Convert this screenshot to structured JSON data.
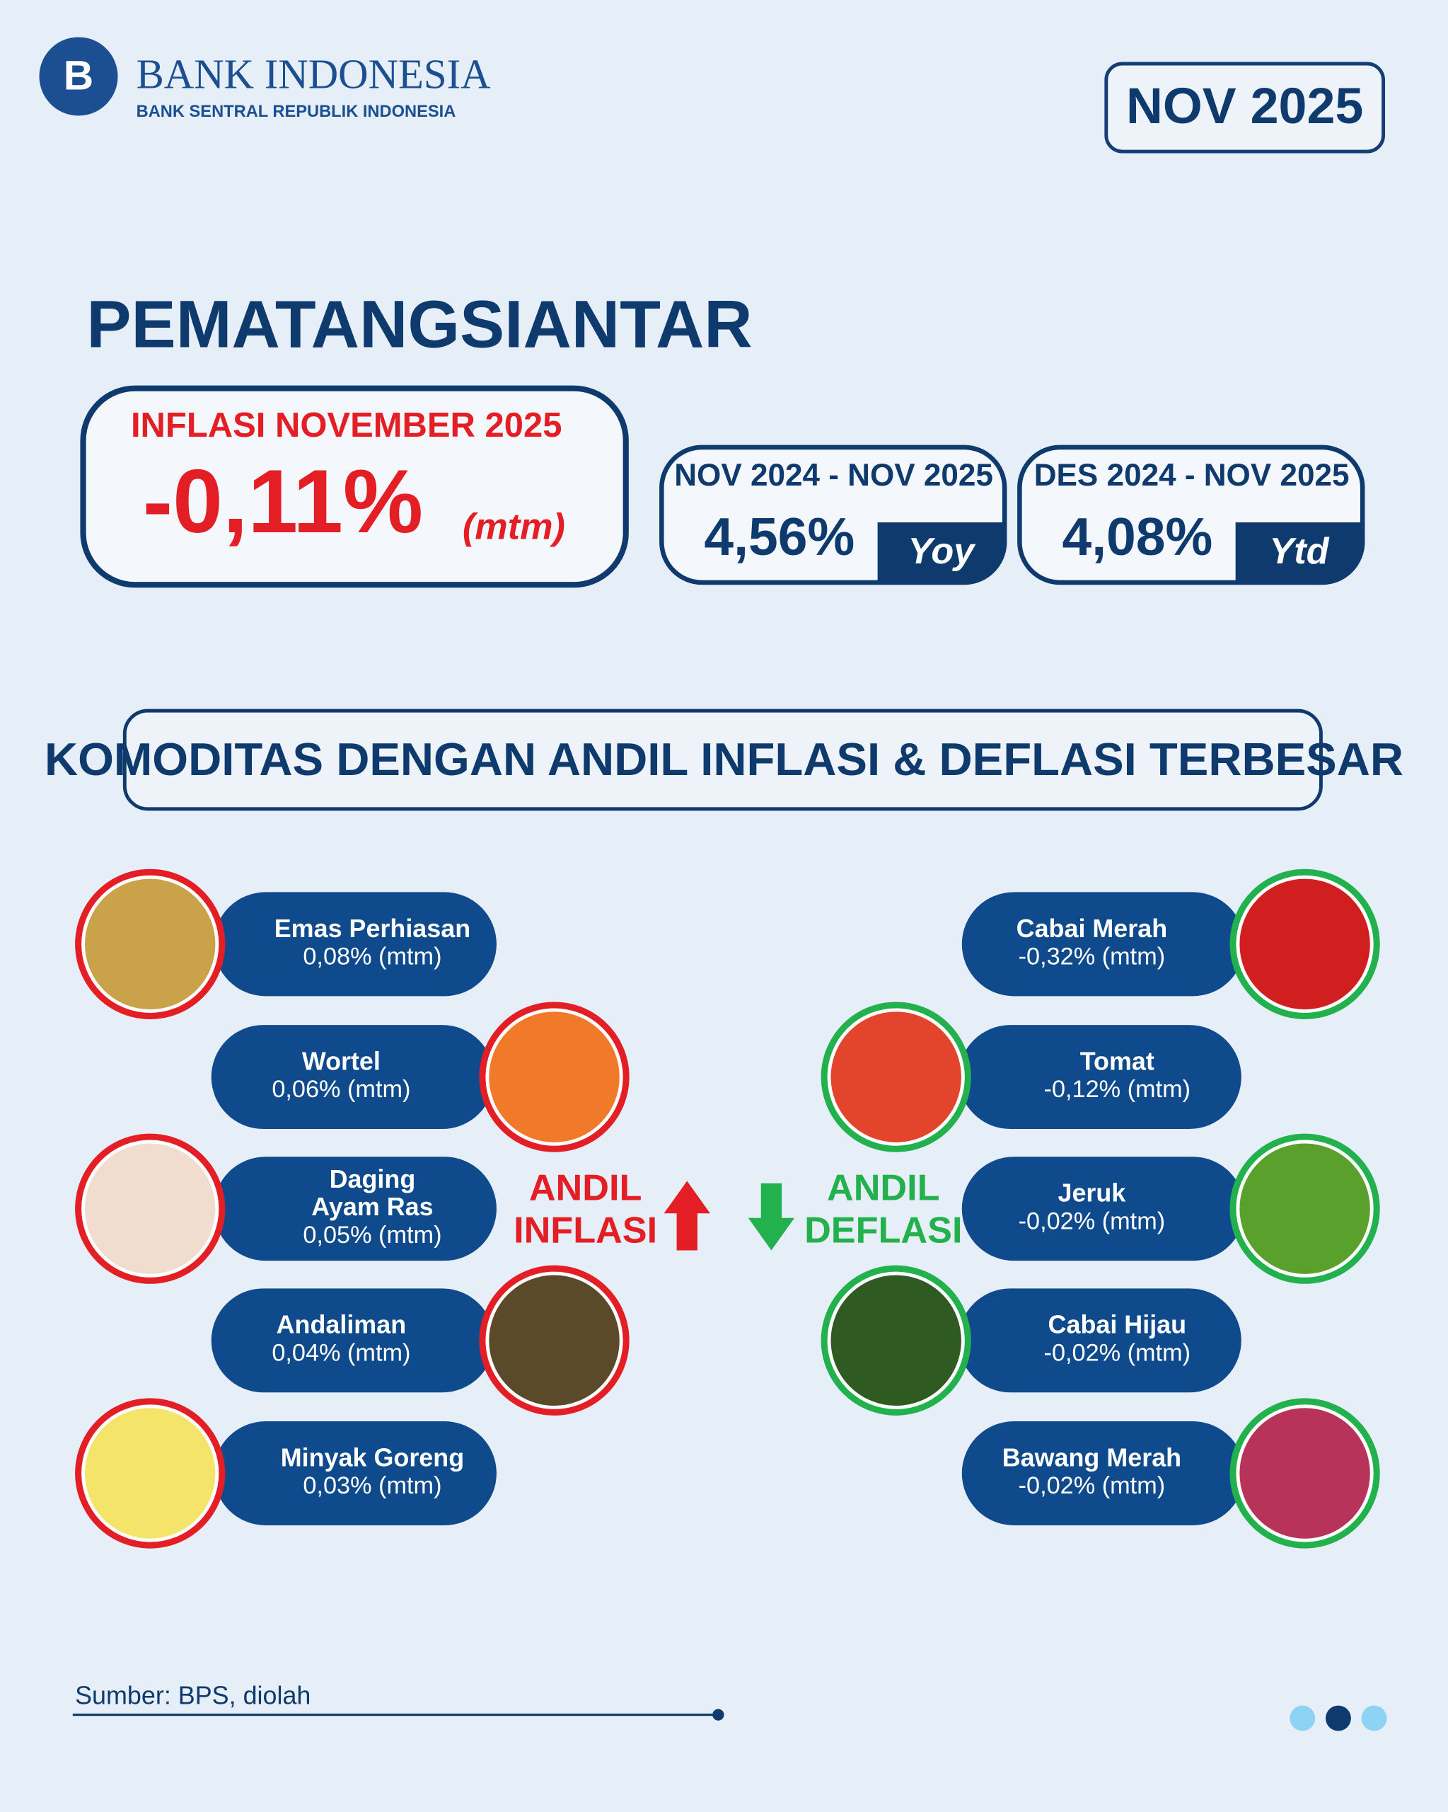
{
  "header": {
    "logo_title": "BANK INDONESIA",
    "logo_subtitle": "BANK SENTRAL REPUBLIK INDONESIA",
    "period": "NOV 2025"
  },
  "city": "PEMATANGSIANTAR",
  "mtm": {
    "label": "INFLASI NOVEMBER 2025",
    "value": "-0,11%",
    "unit": "(mtm)"
  },
  "yoy": {
    "label": "NOV 2024 - NOV 2025",
    "value": "4,56%",
    "tag": "Yoy"
  },
  "ytd": {
    "label": "DES 2024 - NOV 2025",
    "value": "4,08%",
    "tag": "Ytd"
  },
  "section_title": "KOMODITAS DENGAN ANDIL INFLASI & DEFLASI TERBESAR",
  "inflation": {
    "label": [
      "ANDIL",
      "INFLASI"
    ],
    "items": [
      {
        "name": [
          "Emas Perhiasan"
        ],
        "value": "0,08% (mtm)"
      },
      {
        "name": [
          "Wortel"
        ],
        "value": "0,06% (mtm)"
      },
      {
        "name": [
          "Daging",
          "Ayam Ras"
        ],
        "value": "0,05% (mtm)"
      },
      {
        "name": [
          "Andaliman"
        ],
        "value": "0,04% (mtm)"
      },
      {
        "name": [
          "Minyak Goreng"
        ],
        "value": "0,03% (mtm)"
      }
    ]
  },
  "deflation": {
    "label": [
      "ANDIL",
      "DEFLASI"
    ],
    "items": [
      {
        "name": [
          "Cabai Merah"
        ],
        "value": "-0,32% (mtm)"
      },
      {
        "name": [
          "Tomat"
        ],
        "value": "-0,12% (mtm)"
      },
      {
        "name": [
          "Jeruk"
        ],
        "value": "-0,02% (mtm)"
      },
      {
        "name": [
          "Cabai Hijau"
        ],
        "value": "-0,02% (mtm)"
      },
      {
        "name": [
          "Bawang Merah"
        ],
        "value": "-0,02% (mtm)"
      }
    ]
  },
  "source": "Sumber: BPS, diolah"
}
